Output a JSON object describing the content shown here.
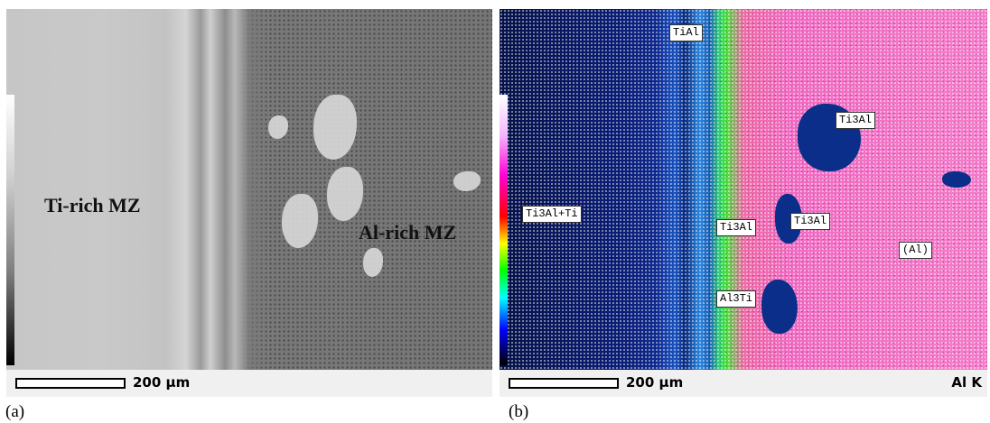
{
  "panel_a": {
    "caption": "(a)",
    "scale_label": "200 µm",
    "labels": {
      "ti_rich": "Ti-rich MZ",
      "al_rich": "Al-rich MZ"
    }
  },
  "panel_b": {
    "caption": "(b)",
    "scale_label": "200 µm",
    "element_label": "Al K",
    "labels": {
      "tial": "TiAl",
      "ti3al_top": "Ti3Al",
      "ti3al_ti": "Ti3Al+Ti",
      "ti3al_mid": "Ti3Al",
      "ti3al_right": "Ti3Al",
      "al": "(Al)",
      "al3ti": "Al3Ti"
    }
  },
  "colors": {
    "ti_rich_blue": "#0b1e78",
    "al_rich_magenta": "#f36bc4",
    "interface_green": "#49e03a"
  }
}
